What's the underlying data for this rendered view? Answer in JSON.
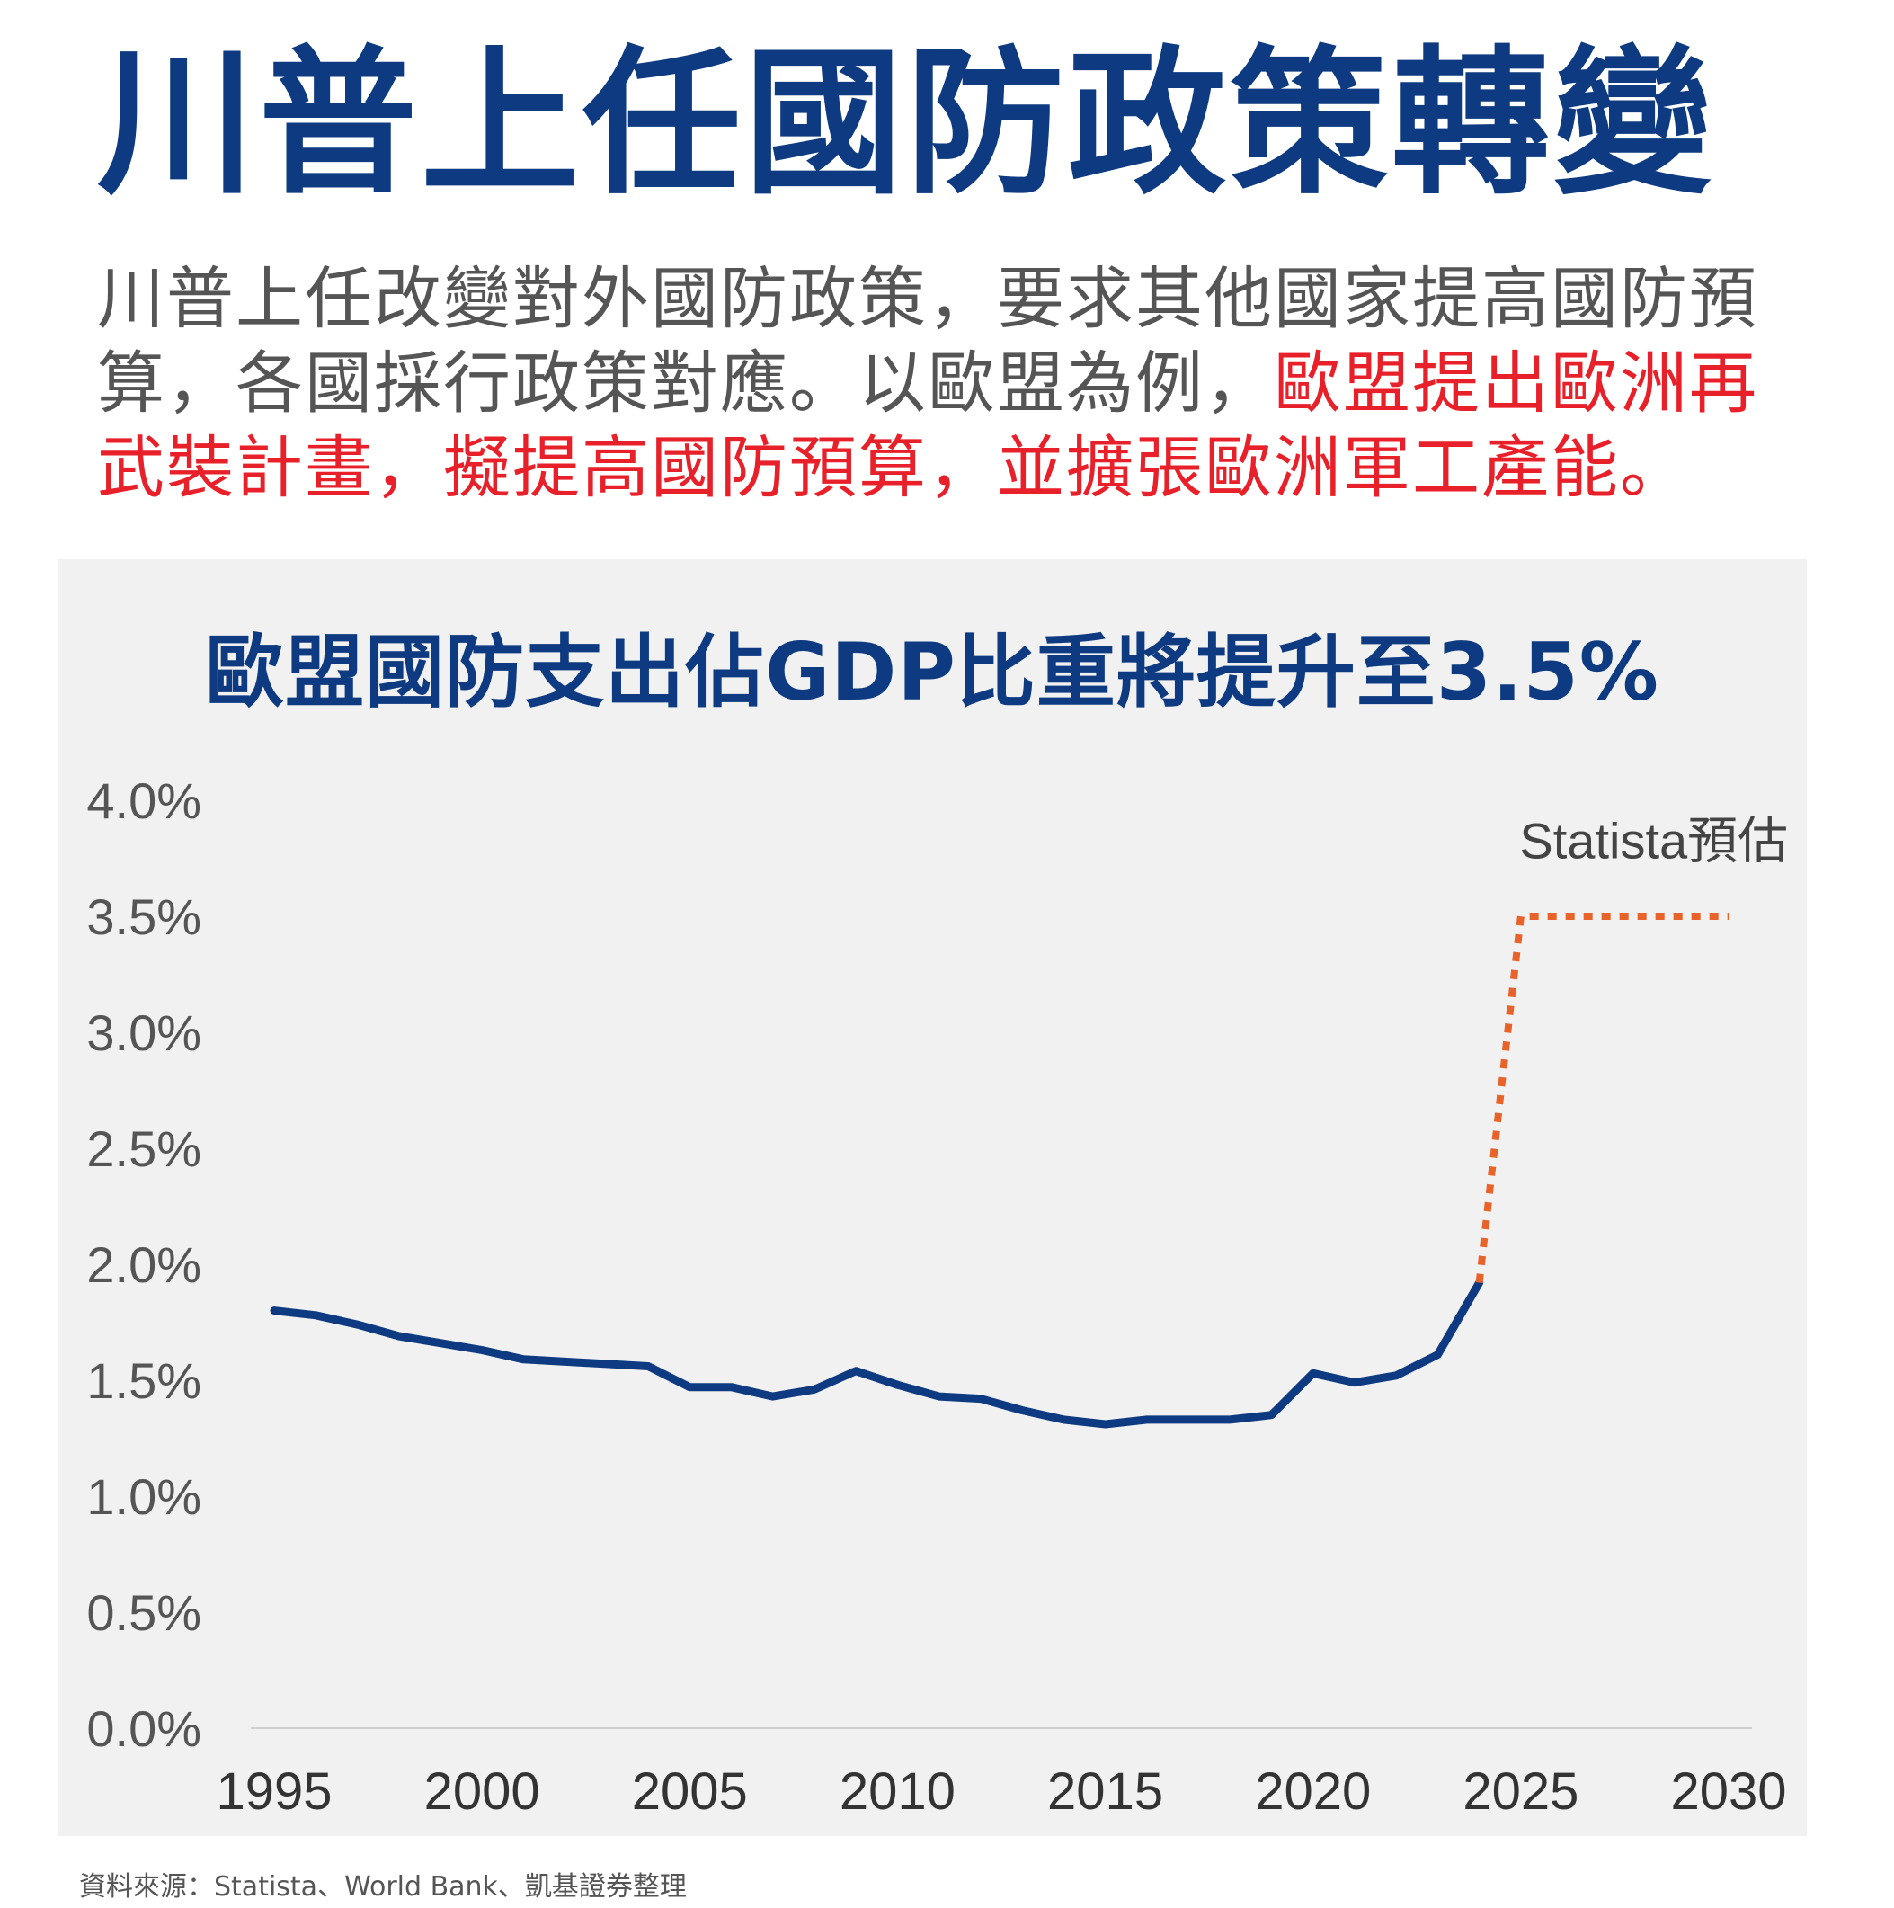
{
  "header": {
    "title": "川普上任國防政策轉變",
    "lead_plain": "川普上任改變對外國防政策，要求其他國家提高國防預算，各國採行政策對應。以歐盟為例，",
    "lead_highlight": "歐盟提出歐洲再武裝計畫，擬提高國防預算，並擴張歐洲軍工產能。"
  },
  "colors": {
    "title": "#0d3a80",
    "actual_line": "#0d3a80",
    "forecast_line": "#e8632a",
    "highlight_text": "#e8202a",
    "panel_bg": "#f1f1f1"
  },
  "chart_data": {
    "type": "line",
    "title": "歐盟國防支出佔GDP比重將提升至3.5%",
    "xlabel": "",
    "ylabel": "",
    "xlim": [
      1995,
      2030
    ],
    "ylim": [
      0,
      4.0
    ],
    "y_ticks": [
      "0.0%",
      "0.5%",
      "1.0%",
      "1.5%",
      "2.0%",
      "2.5%",
      "3.0%",
      "3.5%",
      "4.0%"
    ],
    "x_ticks": [
      "1995",
      "2000",
      "2005",
      "2010",
      "2015",
      "2020",
      "2025",
      "2030"
    ],
    "grid": false,
    "series": [
      {
        "style": "solid",
        "x": [
          1995,
          1996,
          1997,
          1998,
          1999,
          2000,
          2001,
          2002,
          2003,
          2004,
          2005,
          2006,
          2007,
          2008,
          2009,
          2010,
          2011,
          2012,
          2013,
          2014,
          2015,
          2016,
          2017,
          2018,
          2019,
          2020,
          2021,
          2022,
          2023,
          2024
        ],
        "values": [
          1.8,
          1.78,
          1.74,
          1.69,
          1.66,
          1.63,
          1.59,
          1.58,
          1.57,
          1.56,
          1.47,
          1.47,
          1.43,
          1.46,
          1.54,
          1.48,
          1.43,
          1.42,
          1.37,
          1.33,
          1.31,
          1.33,
          1.33,
          1.33,
          1.35,
          1.53,
          1.49,
          1.52,
          1.61,
          1.92
        ]
      },
      {
        "style": "dotted",
        "x": [
          2024,
          2025,
          2030
        ],
        "values": [
          1.92,
          3.5,
          3.5
        ]
      }
    ],
    "annotations": [
      {
        "text": "Statista預估",
        "x": 2028.2,
        "y": 3.75
      }
    ]
  },
  "source": "資料來源：Statista、World Bank、凱基證券整理"
}
